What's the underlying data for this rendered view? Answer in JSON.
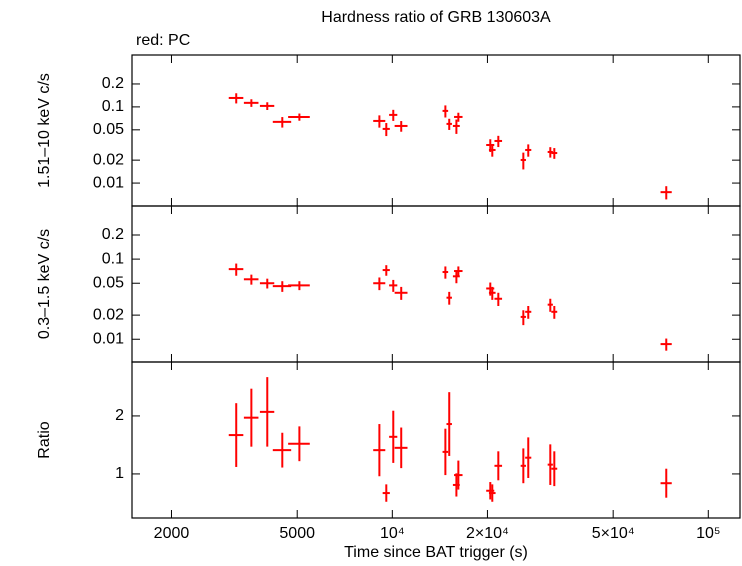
{
  "chart_data": [
    {
      "type": "errorbar",
      "title": "Hardness ratio of GRB 130603A",
      "annotation": "red: PC",
      "y_label": "1.51–10 keV c/s",
      "xlog": true,
      "ylog": true,
      "xlim": [
        1500,
        126000
      ],
      "ylim": [
        0.005,
        0.48
      ],
      "yticks": [
        0.01,
        0.02,
        0.05,
        0.1,
        0.2
      ],
      "color": "#ff0000",
      "x": [
        3206,
        3580,
        4020,
        4485,
        5080,
        9100,
        9570,
        10070,
        10670,
        14720,
        15140,
        15950,
        16180,
        20420,
        20720,
        21650,
        25980,
        26930,
        31620,
        32560,
        73620
      ],
      "xerr": [
        170,
        190,
        210,
        300,
        400,
        400,
        250,
        300,
        500,
        300,
        300,
        400,
        500,
        600,
        500,
        600,
        500,
        600,
        600,
        700,
        3000
      ],
      "values": [
        0.131,
        0.113,
        0.103,
        0.0635,
        0.0738,
        0.0654,
        0.0514,
        0.0785,
        0.0562,
        0.0886,
        0.0598,
        0.0562,
        0.0738,
        0.0316,
        0.0272,
        0.0357,
        0.0201,
        0.0272,
        0.0256,
        0.0248,
        0.0076
      ],
      "errors": [
        0.02,
        0.013,
        0.012,
        0.01,
        0.008,
        0.012,
        0.01,
        0.013,
        0.009,
        0.016,
        0.01,
        0.012,
        0.01,
        0.006,
        0.005,
        0.006,
        0.005,
        0.005,
        0.004,
        0.004,
        0.0015
      ]
    },
    {
      "type": "errorbar",
      "y_label": "0.3–1.5 keV c/s",
      "xlog": true,
      "ylog": true,
      "xlim": [
        1500,
        126000
      ],
      "ylim": [
        0.0052,
        0.46
      ],
      "yticks": [
        0.01,
        0.02,
        0.05,
        0.1,
        0.2
      ],
      "color": "#ff0000",
      "x": [
        3206,
        3580,
        4020,
        4485,
        5080,
        9100,
        9570,
        10070,
        10670,
        14720,
        15140,
        15950,
        16180,
        20420,
        20720,
        21650,
        25980,
        26930,
        31620,
        32560,
        73620
      ],
      "xerr": [
        170,
        190,
        210,
        300,
        400,
        400,
        250,
        300,
        500,
        300,
        300,
        400,
        500,
        600,
        500,
        600,
        500,
        600,
        600,
        700,
        3000
      ],
      "values": [
        0.075,
        0.056,
        0.05,
        0.046,
        0.047,
        0.05,
        0.073,
        0.047,
        0.038,
        0.069,
        0.033,
        0.061,
        0.071,
        0.043,
        0.038,
        0.032,
        0.019,
        0.022,
        0.027,
        0.022,
        0.0087
      ],
      "errors": [
        0.013,
        0.008,
        0.007,
        0.007,
        0.006,
        0.009,
        0.011,
        0.008,
        0.007,
        0.012,
        0.006,
        0.011,
        0.01,
        0.008,
        0.007,
        0.006,
        0.004,
        0.004,
        0.005,
        0.004,
        0.0015
      ]
    },
    {
      "type": "errorbar",
      "y_label": "Ratio",
      "x_label": "Time since BAT trigger (s)",
      "xlog": true,
      "ylog": false,
      "xlim": [
        1500,
        126000
      ],
      "ylim": [
        0.24,
        2.93
      ],
      "yticks": [
        1,
        2
      ],
      "xticks": [
        2000,
        5000,
        {
          "value": 10000,
          "label": "10⁴"
        },
        {
          "value": 20000,
          "label": "2×10⁴"
        },
        {
          "value": 50000,
          "label": "5×10⁴"
        },
        {
          "value": 100000,
          "label": "10⁵"
        }
      ],
      "color": "#ff0000",
      "x": [
        3206,
        3580,
        4020,
        4485,
        5080,
        9100,
        9570,
        10070,
        10670,
        14720,
        15140,
        15950,
        16180,
        20420,
        20720,
        21650,
        25980,
        26930,
        31620,
        32560,
        73620
      ],
      "xerr": [
        170,
        190,
        210,
        300,
        400,
        400,
        250,
        300,
        500,
        300,
        300,
        400,
        500,
        600,
        500,
        600,
        500,
        600,
        600,
        700,
        3000
      ],
      "values": [
        1.67,
        1.97,
        2.07,
        1.41,
        1.52,
        1.41,
        0.67,
        1.64,
        1.45,
        1.38,
        1.86,
        0.81,
        0.98,
        0.71,
        0.67,
        1.14,
        1.14,
        1.28,
        1.16,
        1.09,
        0.84
      ],
      "errors": [
        0.55,
        0.5,
        0.6,
        0.3,
        0.3,
        0.45,
        0.15,
        0.45,
        0.35,
        0.4,
        0.55,
        0.2,
        0.25,
        0.15,
        0.15,
        0.25,
        0.3,
        0.35,
        0.35,
        0.3,
        0.25
      ]
    }
  ]
}
